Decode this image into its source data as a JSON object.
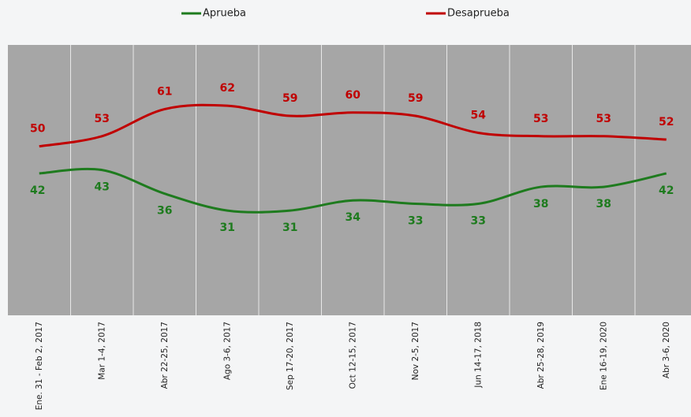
{
  "chart_data": {
    "type": "line",
    "categories": [
      "Ene. 31 - Feb 2, 2017",
      "Mar 1-4, 2017",
      "Abr 22-25, 2017",
      "Ago 3-6, 2017",
      "Sep 17-20, 2017",
      "Oct 12-15, 2017",
      "Nov 2-5, 2017",
      "Jun 14-17, 2018",
      "Abr 25-28, 2019",
      "Ene 16-19, 2020",
      "Abr 3-6, 2020"
    ],
    "series": [
      {
        "name": "Aprueba",
        "color": "#1e7b1e",
        "values": [
          42,
          43,
          36,
          31,
          31,
          34,
          33,
          33,
          38,
          38,
          42
        ]
      },
      {
        "name": "Desaprueba",
        "color": "#c00000",
        "values": [
          50,
          53,
          61,
          62,
          59,
          60,
          59,
          54,
          53,
          53,
          52
        ]
      }
    ],
    "ylim": [
      0,
      80
    ],
    "legend": "top"
  }
}
